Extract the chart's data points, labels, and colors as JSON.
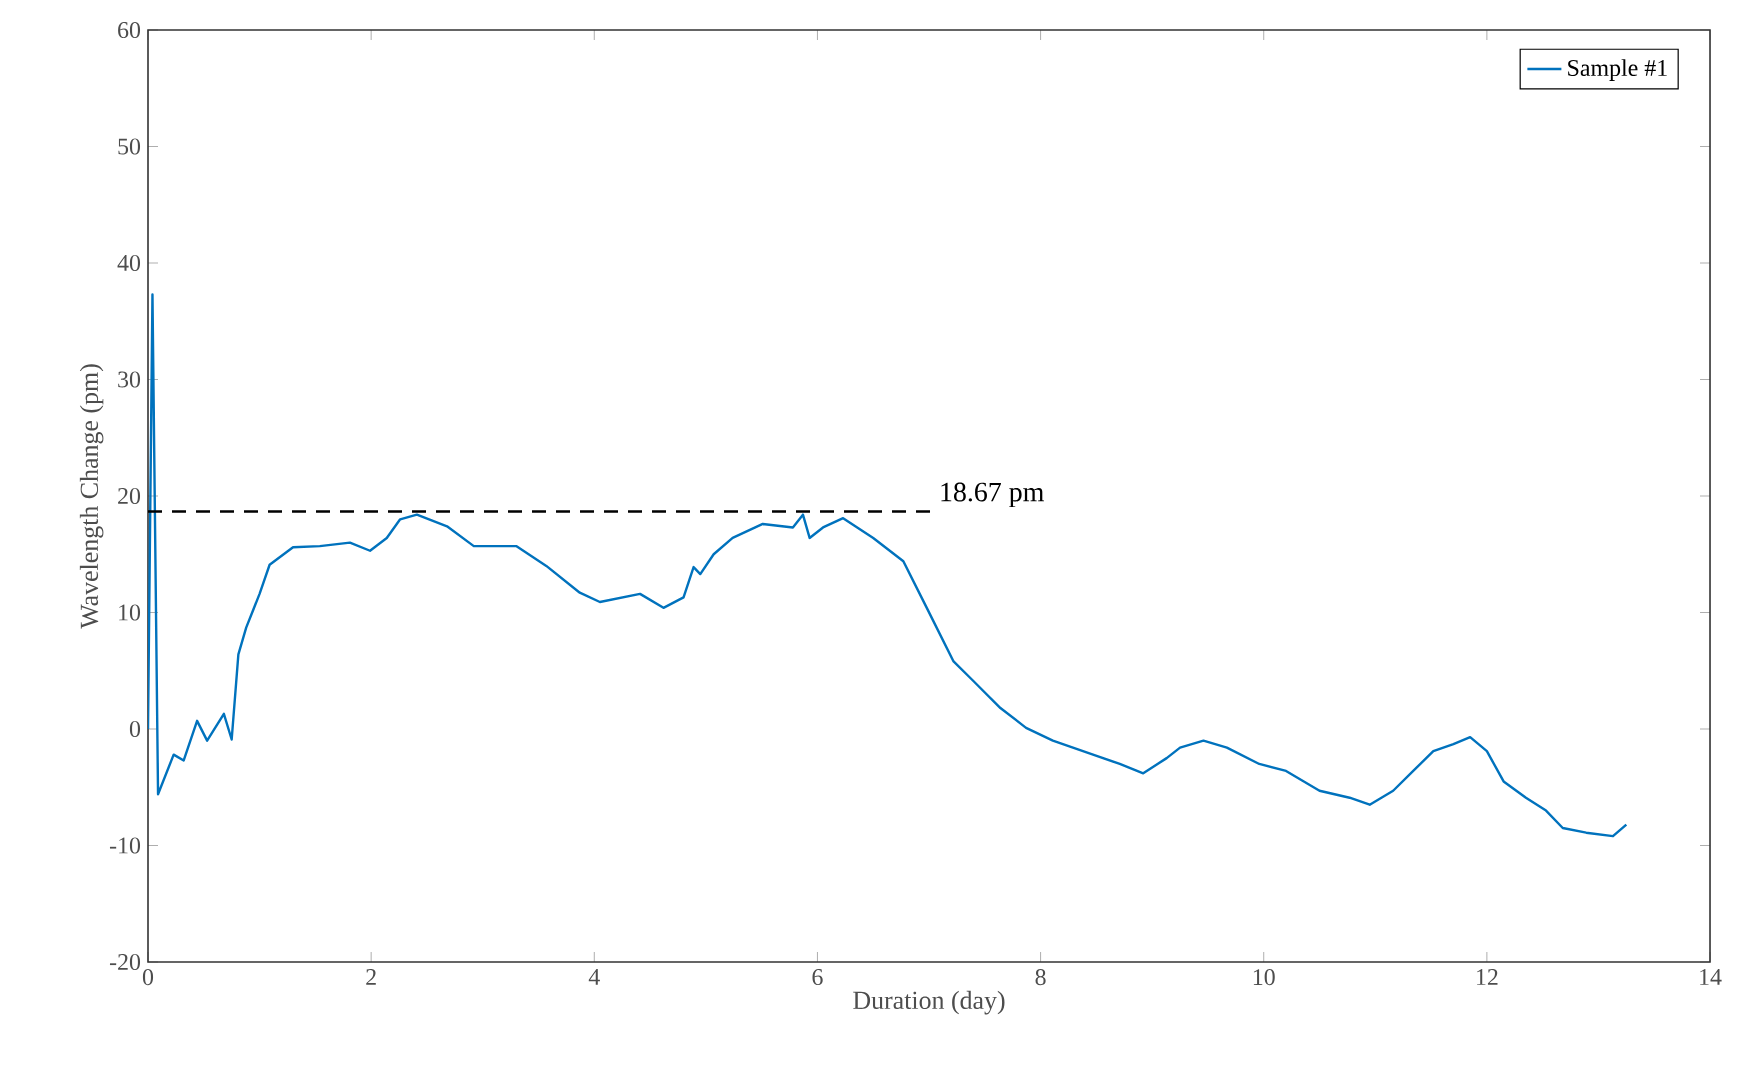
{
  "chart_data": {
    "type": "line",
    "xlabel": "Duration (day)",
    "ylabel": "Wavelength Change (pm)",
    "xlim": [
      0,
      14
    ],
    "ylim": [
      -20,
      60
    ],
    "xticks": [
      0,
      2,
      4,
      6,
      8,
      10,
      12,
      14
    ],
    "yticks": [
      -20,
      -10,
      0,
      10,
      20,
      30,
      40,
      50,
      60
    ],
    "grid": false,
    "legend": "top right",
    "marker": "none",
    "series": [
      {
        "name": "Sample #1",
        "color": "#0072bd",
        "line_style": "solid",
        "x": [
          0,
          0.04,
          0.09,
          0.23,
          0.32,
          0.44,
          0.53,
          0.68,
          0.75,
          0.81,
          0.88,
          1.0,
          1.09,
          1.3,
          1.54,
          1.81,
          1.99,
          2.14,
          2.26,
          2.41,
          2.68,
          2.92,
          3.3,
          3.57,
          3.87,
          4.05,
          4.41,
          4.62,
          4.8,
          4.89,
          4.95,
          5.07,
          5.24,
          5.51,
          5.78,
          5.87,
          5.93,
          6.05,
          6.23,
          6.5,
          6.77,
          6.98,
          7.22,
          7.4,
          7.64,
          7.87,
          8.11,
          8.47,
          8.71,
          8.92,
          9.13,
          9.25,
          9.46,
          9.67,
          9.96,
          10.2,
          10.5,
          10.77,
          10.95,
          11.16,
          11.34,
          11.52,
          11.7,
          11.85,
          12.0,
          12.15,
          12.35,
          12.53,
          12.68,
          12.89,
          13.13,
          13.25
        ],
        "values": [
          0,
          37.3,
          -5.6,
          -2.2,
          -2.7,
          0.7,
          -1.0,
          1.3,
          -0.9,
          6.4,
          8.7,
          11.6,
          14.1,
          15.6,
          15.7,
          16.0,
          15.3,
          16.4,
          18.0,
          18.4,
          17.4,
          15.7,
          15.7,
          14.0,
          11.7,
          10.9,
          11.6,
          10.4,
          11.3,
          13.9,
          13.3,
          15.0,
          16.4,
          17.6,
          17.3,
          18.4,
          16.4,
          17.3,
          18.1,
          16.4,
          14.4,
          10.4,
          5.8,
          4.1,
          1.8,
          0.1,
          -1.0,
          -2.2,
          -3.0,
          -3.8,
          -2.5,
          -1.6,
          -1.0,
          -1.6,
          -3.0,
          -3.6,
          -5.3,
          -5.9,
          -6.5,
          -5.3,
          -3.6,
          -1.9,
          -1.3,
          -0.7,
          -1.9,
          -4.5,
          -5.9,
          -7.0,
          -8.5,
          -8.9,
          -9.2,
          -8.2
        ]
      },
      {
        "type": "line",
        "color": "#000000",
        "line_style": "dashed",
        "x": [
          0,
          7.05
        ],
        "values": [
          18.67,
          18.67
        ]
      }
    ],
    "annotations": [
      {
        "text": "18.67 pm",
        "x": 7.05,
        "y": 18.67
      }
    ]
  }
}
